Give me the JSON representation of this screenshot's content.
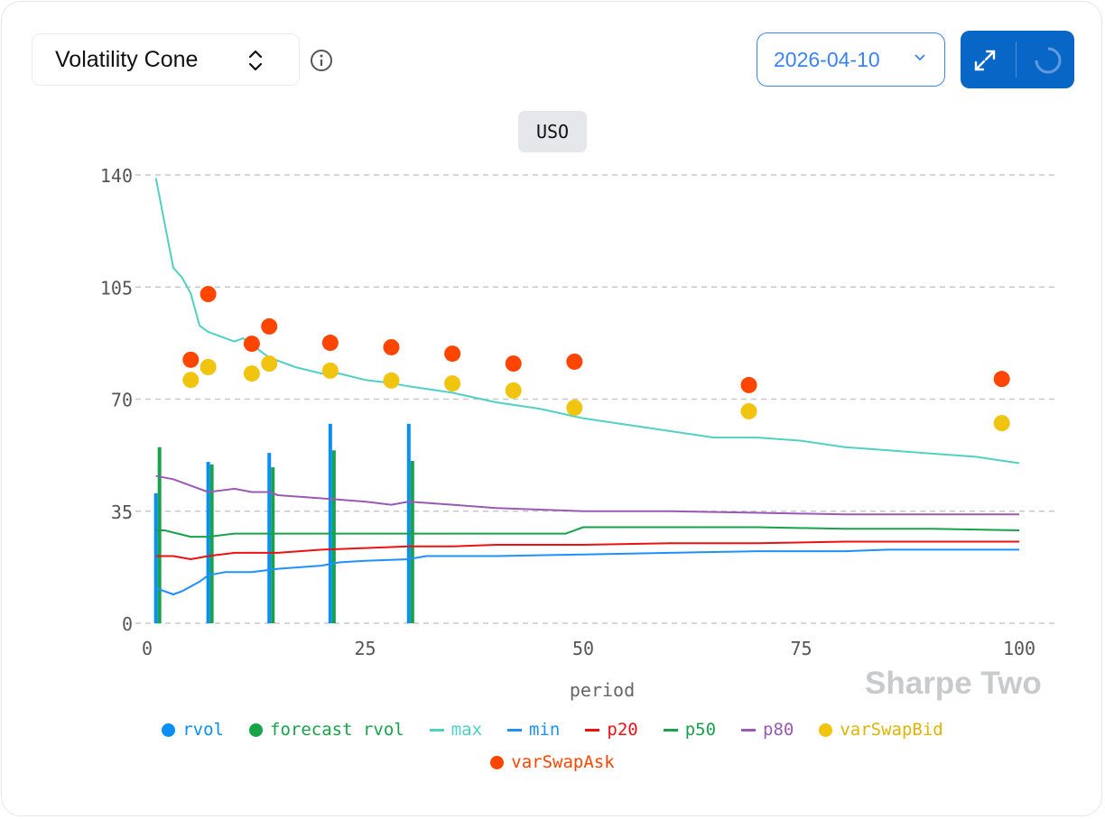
{
  "header": {
    "chart_selector": "Volatility Cone",
    "date": "2026-04-10",
    "ticker": "USO"
  },
  "watermark": "Sharpe Two",
  "colors": {
    "rvol": "#0a8ff5",
    "forecast_rvol": "#16a34a",
    "max": "#4fd1c5",
    "min": "#1e90ff",
    "p20": "#ee1111",
    "p50": "#16a34a",
    "p80": "#9b59b6",
    "varSwapBid": "#f1c40f",
    "varSwapAsk": "#ff4500"
  },
  "chart_data": {
    "type": "line",
    "xlabel": "period",
    "ylabel": "",
    "xlim": [
      0,
      100
    ],
    "ylim": [
      0,
      140
    ],
    "xticks": [
      0,
      25,
      50,
      75,
      100
    ],
    "yticks": [
      0,
      35,
      70,
      105,
      140
    ],
    "grid": "horizontal dashed",
    "legend_position": "bottom",
    "legend": [
      "rvol",
      "forecast rvol",
      "max",
      "min",
      "p20",
      "p50",
      "p80",
      "varSwapBid",
      "varSwapAsk"
    ],
    "bars": {
      "rvol": {
        "x": [
          1,
          7,
          14,
          21,
          30
        ],
        "values": [
          40.6,
          50.4,
          53.2,
          62.3,
          62.3
        ]
      },
      "forecast_rvol": {
        "x": [
          1,
          7,
          14,
          21,
          30
        ],
        "values": [
          55,
          49.6,
          48.7,
          54,
          50.7
        ]
      }
    },
    "lines": {
      "max": [
        [
          1,
          139
        ],
        [
          2,
          125
        ],
        [
          3,
          111
        ],
        [
          4,
          108
        ],
        [
          5,
          103
        ],
        [
          6,
          93
        ],
        [
          7,
          91
        ],
        [
          10,
          88
        ],
        [
          11,
          89
        ],
        [
          12,
          87
        ],
        [
          14,
          83
        ],
        [
          17,
          80
        ],
        [
          20,
          78
        ],
        [
          22,
          78
        ],
        [
          25,
          76
        ],
        [
          28,
          75
        ],
        [
          30,
          74
        ],
        [
          35,
          72
        ],
        [
          40,
          69
        ],
        [
          45,
          67
        ],
        [
          50,
          64
        ],
        [
          55,
          62
        ],
        [
          60,
          60
        ],
        [
          65,
          58
        ],
        [
          70,
          58
        ],
        [
          75,
          57
        ],
        [
          80,
          55
        ],
        [
          85,
          54
        ],
        [
          90,
          53
        ],
        [
          95,
          52
        ],
        [
          100,
          50
        ]
      ],
      "p80": [
        [
          1,
          46
        ],
        [
          3,
          45
        ],
        [
          5,
          43
        ],
        [
          7,
          41
        ],
        [
          10,
          42
        ],
        [
          12,
          41
        ],
        [
          14,
          41
        ],
        [
          15,
          40
        ],
        [
          20,
          39
        ],
        [
          25,
          38
        ],
        [
          28,
          37
        ],
        [
          30,
          38
        ],
        [
          35,
          37
        ],
        [
          40,
          36
        ],
        [
          50,
          35
        ],
        [
          60,
          35
        ],
        [
          70,
          34.5
        ],
        [
          80,
          34
        ],
        [
          90,
          34
        ],
        [
          100,
          34
        ]
      ],
      "p50": [
        [
          1,
          29
        ],
        [
          2,
          29
        ],
        [
          5,
          27
        ],
        [
          7,
          27
        ],
        [
          10,
          28
        ],
        [
          15,
          28
        ],
        [
          20,
          28
        ],
        [
          25,
          28
        ],
        [
          30,
          28
        ],
        [
          40,
          28
        ],
        [
          48,
          28
        ],
        [
          50,
          30
        ],
        [
          60,
          30
        ],
        [
          70,
          30
        ],
        [
          80,
          29.5
        ],
        [
          90,
          29.5
        ],
        [
          100,
          29
        ]
      ],
      "p20": [
        [
          1,
          21
        ],
        [
          3,
          21
        ],
        [
          5,
          20
        ],
        [
          7,
          21
        ],
        [
          10,
          22
        ],
        [
          15,
          22
        ],
        [
          20,
          23
        ],
        [
          25,
          23.5
        ],
        [
          30,
          24
        ],
        [
          35,
          24
        ],
        [
          40,
          24.5
        ],
        [
          50,
          24.5
        ],
        [
          60,
          25
        ],
        [
          70,
          25
        ],
        [
          80,
          25.5
        ],
        [
          90,
          25.5
        ],
        [
          100,
          25.5
        ]
      ],
      "min": [
        [
          1,
          11
        ],
        [
          3,
          9
        ],
        [
          4,
          10
        ],
        [
          6,
          13
        ],
        [
          7,
          15
        ],
        [
          9,
          16
        ],
        [
          12,
          16
        ],
        [
          15,
          17
        ],
        [
          20,
          18
        ],
        [
          22,
          19
        ],
        [
          25,
          19.5
        ],
        [
          30,
          20
        ],
        [
          32,
          21
        ],
        [
          40,
          21
        ],
        [
          50,
          21.5
        ],
        [
          60,
          22
        ],
        [
          70,
          22.5
        ],
        [
          80,
          22.5
        ],
        [
          85,
          23
        ],
        [
          100,
          23
        ]
      ]
    },
    "scatter": {
      "x": [
        5,
        7,
        12,
        14,
        21,
        28,
        35,
        42,
        49,
        69,
        98
      ],
      "varSwapAsk": [
        82.3,
        102.8,
        87.3,
        92.7,
        87.6,
        86.2,
        84.2,
        81.1,
        81.7,
        74.4,
        76.3
      ],
      "varSwapBid": [
        76,
        80,
        78,
        81.1,
        78.9,
        75.8,
        74.9,
        72.7,
        67.3,
        66.2,
        62.5
      ]
    }
  }
}
